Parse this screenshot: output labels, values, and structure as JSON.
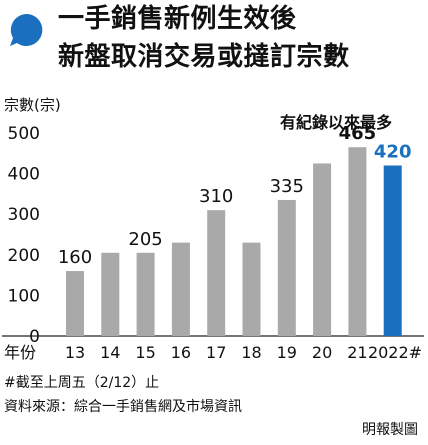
{
  "title_lines": [
    "一手銷售新例生效後",
    "新盤取消交易或撻訂宗數"
  ],
  "accent_color": "#1a6fbf",
  "bar_color": "#a9a9a9",
  "chart_data": {
    "type": "bar",
    "title": "一手銷售新例生效後新盤取消交易或撻訂宗數",
    "ylabel": "宗數(宗)",
    "xlabel": "年份",
    "ylim": [
      0,
      500
    ],
    "yticks": [
      0,
      100,
      200,
      300,
      400,
      500
    ],
    "categories": [
      "13",
      "14",
      "15",
      "16",
      "17",
      "18",
      "19",
      "20",
      "21",
      "2022#"
    ],
    "values": [
      160,
      205,
      205,
      230,
      310,
      230,
      335,
      425,
      465,
      420
    ],
    "data_labels": [
      "160",
      "",
      "205",
      "",
      "310",
      "",
      "335",
      "",
      "465",
      "420"
    ],
    "highlight_index": 9,
    "annotation": "有紀錄以來最多",
    "grid": false
  },
  "footnote": "#截至上周五（2/12）止",
  "source": "資料來源：綜合一手銷售網及市場資訊",
  "credit": "明報製圖"
}
